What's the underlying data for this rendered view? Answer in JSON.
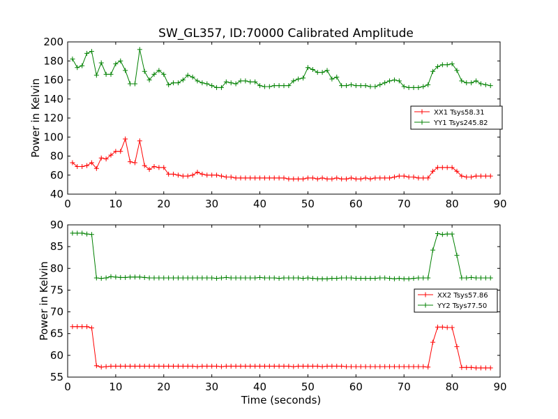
{
  "chart_data": {
    "title": "SW_GL357, ID:70000 Calibrated Amplitude",
    "panels": [
      {
        "type": "line",
        "ylabel": "Power in Kelvin",
        "xlabel": "",
        "xlim": [
          0,
          90
        ],
        "ylim": [
          40,
          200
        ],
        "xticks": [
          0,
          10,
          20,
          30,
          40,
          50,
          60,
          70,
          80,
          90
        ],
        "yticks": [
          40,
          60,
          80,
          100,
          120,
          140,
          160,
          180,
          200
        ],
        "legend_position": "right",
        "x": [
          1,
          2,
          3,
          4,
          5,
          6,
          7,
          8,
          9,
          10,
          11,
          12,
          13,
          14,
          15,
          16,
          17,
          18,
          19,
          20,
          21,
          22,
          23,
          24,
          25,
          26,
          27,
          28,
          29,
          30,
          31,
          32,
          33,
          34,
          35,
          36,
          37,
          38,
          39,
          40,
          41,
          42,
          43,
          44,
          45,
          46,
          47,
          48,
          49,
          50,
          51,
          52,
          53,
          54,
          55,
          56,
          57,
          58,
          59,
          60,
          61,
          62,
          63,
          64,
          65,
          66,
          67,
          68,
          69,
          70,
          71,
          72,
          73,
          74,
          75,
          76,
          77,
          78,
          79,
          80,
          81,
          82,
          83,
          84,
          85,
          86,
          87,
          88
        ],
        "series": [
          {
            "name": "XX1 Tsys58.31",
            "color": "#ff0000",
            "values": [
              73,
              69,
              69,
              70,
              73,
              67,
              78,
              77,
              81,
              85,
              85,
              98,
              74,
              73,
              96,
              70,
              66,
              69,
              68,
              68,
              61,
              61,
              60,
              59,
              59,
              60,
              63,
              61,
              60,
              60,
              60,
              59,
              58,
              58,
              57,
              57,
              57,
              57,
              57,
              57,
              57,
              57,
              57,
              57,
              57,
              56,
              56,
              56,
              56,
              57,
              57,
              56,
              57,
              56,
              56,
              57,
              56,
              56,
              57,
              56,
              56,
              57,
              56,
              57,
              57,
              57,
              57,
              58,
              59,
              59,
              58,
              58,
              57,
              57,
              57,
              64,
              68,
              68,
              68,
              68,
              64,
              59,
              58,
              58,
              59,
              59,
              59,
              59
            ]
          },
          {
            "name": "YY1 Tsys245.82",
            "color": "#008000",
            "values": [
              182,
              173,
              175,
              188,
              190,
              165,
              178,
              166,
              166,
              177,
              180,
              170,
              156,
              156,
              192,
              169,
              160,
              166,
              170,
              166,
              155,
              157,
              157,
              160,
              165,
              163,
              159,
              157,
              156,
              154,
              152,
              152,
              158,
              157,
              156,
              159,
              159,
              158,
              158,
              154,
              153,
              153,
              154,
              154,
              154,
              154,
              159,
              161,
              162,
              173,
              171,
              168,
              168,
              170,
              161,
              163,
              154,
              154,
              155,
              154,
              154,
              154,
              153,
              153,
              155,
              157,
              159,
              160,
              159,
              153,
              152,
              152,
              152,
              153,
              155,
              169,
              174,
              176,
              176,
              177,
              170,
              159,
              157,
              157,
              159,
              156,
              155,
              154
            ]
          }
        ]
      },
      {
        "type": "line",
        "ylabel": "Power in Kelvin",
        "xlabel": "Time (seconds)",
        "xlim": [
          0,
          90
        ],
        "ylim": [
          55,
          90
        ],
        "xticks": [
          0,
          10,
          20,
          30,
          40,
          50,
          60,
          70,
          80,
          90
        ],
        "yticks": [
          55,
          60,
          65,
          70,
          75,
          80,
          85,
          90
        ],
        "legend_position": "right",
        "x": [
          1,
          2,
          3,
          4,
          5,
          6,
          7,
          8,
          9,
          10,
          11,
          12,
          13,
          14,
          15,
          16,
          17,
          18,
          19,
          20,
          21,
          22,
          23,
          24,
          25,
          26,
          27,
          28,
          29,
          30,
          31,
          32,
          33,
          34,
          35,
          36,
          37,
          38,
          39,
          40,
          41,
          42,
          43,
          44,
          45,
          46,
          47,
          48,
          49,
          50,
          51,
          52,
          53,
          54,
          55,
          56,
          57,
          58,
          59,
          60,
          61,
          62,
          63,
          64,
          65,
          66,
          67,
          68,
          69,
          70,
          71,
          72,
          73,
          74,
          75,
          76,
          77,
          78,
          79,
          80,
          81,
          82,
          83,
          84,
          85,
          86,
          87,
          88
        ],
        "series": [
          {
            "name": "XX2 Tsys57.86",
            "color": "#ff0000",
            "values": [
              66.6,
              66.6,
              66.6,
              66.6,
              66.3,
              57.6,
              57.3,
              57.4,
              57.5,
              57.5,
              57.5,
              57.5,
              57.5,
              57.5,
              57.5,
              57.5,
              57.5,
              57.5,
              57.5,
              57.5,
              57.5,
              57.5,
              57.5,
              57.5,
              57.5,
              57.5,
              57.4,
              57.5,
              57.5,
              57.5,
              57.5,
              57.4,
              57.5,
              57.5,
              57.5,
              57.5,
              57.5,
              57.5,
              57.5,
              57.5,
              57.5,
              57.5,
              57.5,
              57.5,
              57.5,
              57.5,
              57.4,
              57.5,
              57.5,
              57.5,
              57.5,
              57.5,
              57.4,
              57.5,
              57.5,
              57.5,
              57.5,
              57.4,
              57.4,
              57.4,
              57.4,
              57.4,
              57.4,
              57.4,
              57.4,
              57.4,
              57.4,
              57.4,
              57.4,
              57.4,
              57.4,
              57.4,
              57.4,
              57.4,
              57.3,
              63.0,
              66.5,
              66.5,
              66.4,
              66.4,
              62.0,
              57.2,
              57.2,
              57.2,
              57.1,
              57.1,
              57.1,
              57.1
            ]
          },
          {
            "name": "YY2 Tsys77.50",
            "color": "#008000",
            "values": [
              88.1,
              88.1,
              88.1,
              87.9,
              87.8,
              77.8,
              77.7,
              77.8,
              78.1,
              78.0,
              77.9,
              77.9,
              78.0,
              78.0,
              78.0,
              77.9,
              77.8,
              77.8,
              77.8,
              77.8,
              77.8,
              77.8,
              77.8,
              77.8,
              77.8,
              77.8,
              77.8,
              77.8,
              77.8,
              77.8,
              77.7,
              77.8,
              77.9,
              77.8,
              77.8,
              77.8,
              77.8,
              77.8,
              77.8,
              77.9,
              77.8,
              77.8,
              77.8,
              77.7,
              77.8,
              77.8,
              77.8,
              77.8,
              77.7,
              77.8,
              77.7,
              77.6,
              77.6,
              77.6,
              77.7,
              77.7,
              77.8,
              77.8,
              77.8,
              77.7,
              77.7,
              77.7,
              77.7,
              77.7,
              77.8,
              77.8,
              77.7,
              77.6,
              77.7,
              77.6,
              77.6,
              77.7,
              77.8,
              77.8,
              77.8,
              84.2,
              88.0,
              87.8,
              87.9,
              87.9,
              83.0,
              77.8,
              77.8,
              77.9,
              77.8,
              77.8,
              77.8,
              77.8
            ]
          }
        ]
      }
    ]
  }
}
